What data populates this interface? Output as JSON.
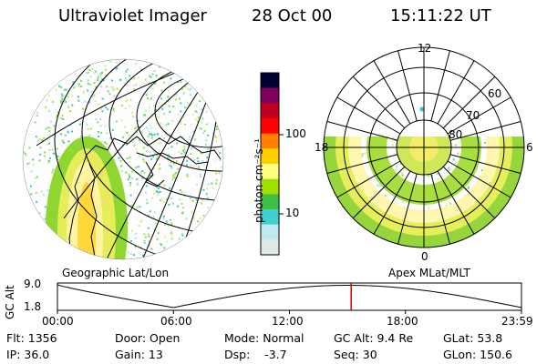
{
  "header": {
    "instrument": "Ultraviolet Imager",
    "date": "28 Oct 00",
    "time": "15:11:22 UT"
  },
  "left_panel": {
    "caption": "Geographic Lat/Lon"
  },
  "right_panel": {
    "caption": "Apex MLat/MLT",
    "mlt_labels": [
      "12",
      "18",
      "6",
      "0"
    ],
    "mlat_labels": [
      "60",
      "70",
      "80"
    ]
  },
  "colorbar": {
    "unit_label": "photon cm⁻²s⁻¹",
    "tick_labels": [
      "100",
      "10"
    ],
    "scale": "log",
    "colors": [
      "#000033",
      "#800060",
      "#c00020",
      "#ff0000",
      "#ff8000",
      "#ffd000",
      "#ffff80",
      "#a0e000",
      "#40c040",
      "#40d0d0",
      "#c0e8f0",
      "#e0e8e8"
    ]
  },
  "altitude_plot": {
    "ylabel": "GC Alt",
    "yticks": [
      "9.0",
      "1.8"
    ],
    "xticks": [
      "00:00",
      "06:00",
      "12:00",
      "18:00",
      "23:59"
    ],
    "current_time_fraction": 0.633,
    "marker_color": "#d00000"
  },
  "info": {
    "row1": {
      "flt": "Flt: 1356",
      "door": "Door: Open",
      "mode": "Mode: Normal",
      "gc_alt": "GC Alt: 9.4 Re",
      "glat": "GLat: 53.8"
    },
    "row2": {
      "ip": "IP: 36.0",
      "gain": "Gain: 13",
      "dsp": "Dsp:    -3.7",
      "seq": "Seq: 30",
      "glon": "GLon: 150.6"
    }
  }
}
